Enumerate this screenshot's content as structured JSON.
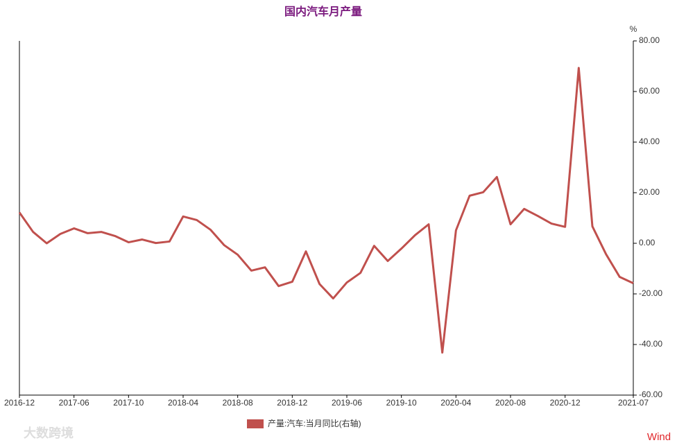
{
  "chart_data": {
    "type": "line",
    "title": "国内汽车月产量",
    "y_unit": "%",
    "categories": [
      "2016-12",
      null,
      null,
      null,
      "2017-06",
      null,
      null,
      null,
      "2017-10",
      null,
      null,
      null,
      "2018-04",
      null,
      null,
      null,
      "2018-08",
      null,
      null,
      null,
      "2018-12",
      null,
      null,
      null,
      "2019-06",
      null,
      null,
      null,
      "2019-10",
      null,
      null,
      null,
      "2020-04",
      null,
      null,
      null,
      "2020-08",
      null,
      null,
      null,
      "2020-12",
      null,
      null,
      null,
      null,
      "2021-07"
    ],
    "series": [
      {
        "name": "产量:汽车:当月同比(右轴)",
        "color": "#c0504d",
        "axis": "y2",
        "values": [
          12.2,
          4.5,
          0.0,
          3.7,
          5.9,
          4.0,
          4.5,
          2.9,
          0.4,
          1.5,
          0.1,
          0.7,
          10.6,
          9.2,
          5.4,
          -0.7,
          -4.5,
          -10.8,
          -9.5,
          -16.9,
          -15.2,
          -3.2,
          -16.1,
          -21.8,
          -15.5,
          -11.7,
          -1.0,
          -7.0,
          -2.1,
          3.2,
          7.5,
          -43.2,
          5.1,
          18.8,
          20.2,
          26.2,
          7.5,
          13.6,
          10.8,
          7.8,
          6.5,
          69.3,
          6.7,
          -4.3,
          -13.3,
          -15.8
        ]
      }
    ],
    "y2lim": [
      -60,
      80
    ],
    "y2ticks": [
      {
        "value": 80,
        "label": "80.00"
      },
      {
        "value": 60,
        "label": "60.00"
      },
      {
        "value": 40,
        "label": "40.00"
      },
      {
        "value": 20,
        "label": "20.00"
      },
      {
        "value": 0,
        "label": "0.00"
      },
      {
        "value": -20,
        "label": "-20.00"
      },
      {
        "value": -40,
        "label": "-40.00"
      },
      {
        "value": -60,
        "label": "-60.00"
      }
    ],
    "source": "Wind",
    "watermark": "大数跨境"
  }
}
